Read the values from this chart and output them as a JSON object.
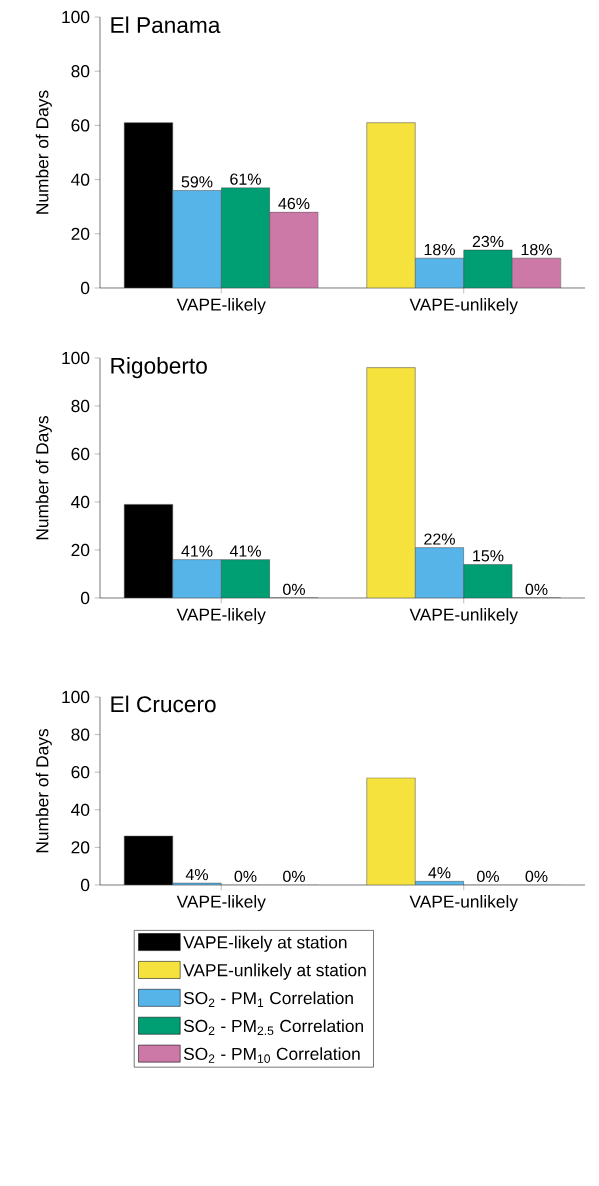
{
  "chart_data": [
    {
      "type": "bar",
      "title": "El Panama",
      "ylabel": "Number of Days",
      "categories": [
        "VAPE-likely",
        "VAPE-unlikely"
      ],
      "ylim": [
        0,
        100
      ],
      "yticks": [
        0,
        20,
        40,
        60,
        80,
        100
      ],
      "series": [
        {
          "color": "#000000",
          "values": [
            61,
            null
          ]
        },
        {
          "color": "#f5e23c",
          "values": [
            null,
            61
          ]
        },
        {
          "color": "#56b4e9",
          "values": [
            36,
            11
          ]
        },
        {
          "color": "#009e73",
          "values": [
            37,
            14
          ]
        },
        {
          "color": "#cc79a7",
          "values": [
            28,
            11
          ]
        }
      ],
      "annotations": [
        "59%",
        "61%",
        "46%",
        "18%",
        "23%",
        "18%"
      ]
    },
    {
      "type": "bar",
      "title": "Rigoberto",
      "ylabel": "Number of Days",
      "categories": [
        "VAPE-likely",
        "VAPE-unlikely"
      ],
      "ylim": [
        0,
        100
      ],
      "yticks": [
        0,
        20,
        40,
        60,
        80,
        100
      ],
      "series": [
        {
          "color": "#000000",
          "values": [
            39,
            null
          ]
        },
        {
          "color": "#f5e23c",
          "values": [
            null,
            96
          ]
        },
        {
          "color": "#56b4e9",
          "values": [
            16,
            21
          ]
        },
        {
          "color": "#009e73",
          "values": [
            16,
            14
          ]
        },
        {
          "color": "#cc79a7",
          "values": [
            0,
            0
          ]
        }
      ],
      "annotations": [
        "41%",
        "41%",
        "0%",
        "22%",
        "15%",
        "0%"
      ]
    },
    {
      "type": "bar",
      "title": "El Crucero",
      "ylabel": "Number of Days",
      "categories": [
        "VAPE-likely",
        "VAPE-unlikely"
      ],
      "ylim": [
        0,
        100
      ],
      "yticks": [
        0,
        20,
        40,
        60,
        80,
        100
      ],
      "legend": "bottom",
      "series": [
        {
          "name": "VAPE-likely at station",
          "color": "#000000",
          "values": [
            26,
            null
          ]
        },
        {
          "name": "VAPE-unlikely at station",
          "color": "#f5e23c",
          "values": [
            null,
            57
          ]
        },
        {
          "name": "SO$_{2}$ - PM$_{1}$ Correlation",
          "color": "#56b4e9",
          "values": [
            1,
            2
          ]
        },
        {
          "name": "SO$_{2}$ - PM$_{2.5}$ Correlation",
          "color": "#009e73",
          "values": [
            0,
            0
          ]
        },
        {
          "name": "SO$_{2}$ - PM$_{10}$ Correlation",
          "color": "#cc79a7",
          "values": [
            0,
            0
          ]
        }
      ],
      "annotations": [
        "4%",
        "0%",
        "0%",
        "4%",
        "0%",
        "0%"
      ]
    }
  ]
}
